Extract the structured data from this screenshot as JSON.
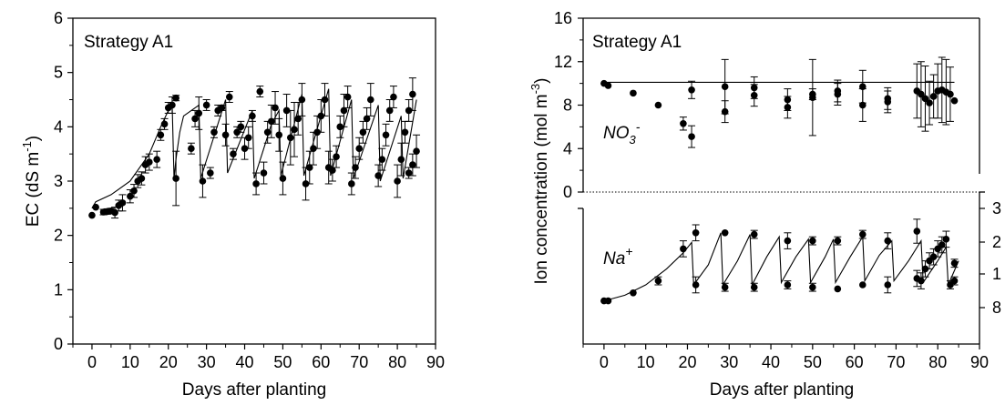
{
  "chart_data": [
    {
      "type": "scatter",
      "annotation": "Strategy A1",
      "xlabel": "Days after planting",
      "ylabel_main": "EC (dS m",
      "ylabel_sup": "-1",
      "ylabel_end": ")",
      "xlim": [
        -5,
        90
      ],
      "ylim": [
        0,
        6
      ],
      "xticks": [
        "0",
        "10",
        "20",
        "30",
        "40",
        "50",
        "60",
        "70",
        "80",
        "90"
      ],
      "yticks": [
        "0",
        "1",
        "2",
        "3",
        "4",
        "5",
        "6"
      ],
      "observed": [
        [
          0,
          2.37,
          0
        ],
        [
          1,
          2.52,
          0
        ],
        [
          3,
          2.43,
          0.05
        ],
        [
          4,
          2.44,
          0.05
        ],
        [
          5,
          2.45,
          0.05
        ],
        [
          6,
          2.42,
          0.1
        ],
        [
          7,
          2.55,
          0.1
        ],
        [
          8,
          2.6,
          0.15
        ],
        [
          10,
          2.72,
          0.12
        ],
        [
          11,
          2.82,
          0.12
        ],
        [
          12,
          3.0,
          0.12
        ],
        [
          13,
          3.05,
          0.12
        ],
        [
          14,
          3.3,
          0.15
        ],
        [
          15,
          3.35,
          0.15
        ],
        [
          17,
          3.4,
          0.15
        ],
        [
          18,
          3.85,
          0.1
        ],
        [
          19,
          4.05,
          0.1
        ],
        [
          20,
          4.35,
          0.1
        ],
        [
          21,
          4.4,
          0.15
        ],
        [
          22,
          4.53,
          0.05
        ],
        [
          22,
          3.05,
          0.5
        ],
        [
          26,
          3.6,
          0.1
        ],
        [
          27,
          4.15,
          0.15
        ],
        [
          28,
          4.25,
          0.3
        ],
        [
          29,
          3.0,
          0.3
        ],
        [
          30,
          4.4,
          0.1
        ],
        [
          31,
          3.15,
          0.1
        ],
        [
          32,
          3.9,
          0.1
        ],
        [
          33,
          4.3,
          0.1
        ],
        [
          34,
          4.35,
          0.05
        ],
        [
          35,
          3.85,
          0.2
        ],
        [
          36,
          4.55,
          0.1
        ],
        [
          37,
          3.5,
          0.1
        ],
        [
          38,
          3.9,
          0.1
        ],
        [
          39,
          4.0,
          0.1
        ],
        [
          40,
          3.6,
          0.2
        ],
        [
          41,
          3.8,
          0.2
        ],
        [
          42,
          4.2,
          0.1
        ],
        [
          43,
          2.95,
          0.2
        ],
        [
          44,
          4.65,
          0.1
        ],
        [
          45,
          3.15,
          0.2
        ],
        [
          46,
          3.9,
          0.2
        ],
        [
          47,
          4.1,
          0.3
        ],
        [
          48,
          4.35,
          0.3
        ],
        [
          49,
          3.85,
          0.3
        ],
        [
          50,
          3.05,
          0.3
        ],
        [
          51,
          4.3,
          0.3
        ],
        [
          52,
          3.8,
          0.5
        ],
        [
          53,
          3.95,
          0.5
        ],
        [
          54,
          4.15,
          0.3
        ],
        [
          55,
          4.5,
          0.3
        ],
        [
          56,
          2.95,
          0.3
        ],
        [
          57,
          3.25,
          0.3
        ],
        [
          58,
          3.6,
          0.3
        ],
        [
          59,
          3.9,
          0.3
        ],
        [
          60,
          4.2,
          0.3
        ],
        [
          61,
          4.5,
          0.3
        ],
        [
          62,
          3.25,
          0.3
        ],
        [
          63,
          3.2,
          0.2
        ],
        [
          64,
          3.45,
          0.2
        ],
        [
          65,
          4.0,
          0.2
        ],
        [
          66,
          4.3,
          0.3
        ],
        [
          67,
          4.55,
          0.2
        ],
        [
          68,
          2.95,
          0.2
        ],
        [
          69,
          3.25,
          0.2
        ],
        [
          70,
          3.6,
          0.2
        ],
        [
          71,
          3.9,
          0.2
        ],
        [
          72,
          4.15,
          0.2
        ],
        [
          73,
          4.5,
          0.3
        ],
        [
          75,
          3.1,
          0.2
        ],
        [
          76,
          3.4,
          0.2
        ],
        [
          77,
          3.85,
          0.2
        ],
        [
          78,
          4.3,
          0.2
        ],
        [
          79,
          4.55,
          0.2
        ],
        [
          80,
          3.0,
          0.3
        ],
        [
          81,
          3.4,
          0.3
        ],
        [
          82,
          3.9,
          0.2
        ],
        [
          83,
          4.3,
          0.2
        ],
        [
          84,
          4.6,
          0.3
        ],
        [
          83,
          3.15,
          0.1
        ],
        [
          84,
          3.3,
          0.2
        ],
        [
          85,
          3.55,
          0.3
        ]
      ],
      "simulated": [
        [
          0,
          2.5
        ],
        [
          1,
          2.62
        ],
        [
          5,
          2.75
        ],
        [
          10,
          3.0
        ],
        [
          15,
          3.5
        ],
        [
          18,
          4.0
        ],
        [
          21,
          4.45
        ],
        [
          21.5,
          3.05
        ],
        [
          22,
          3.4
        ],
        [
          23,
          3.9
        ],
        [
          24,
          4.2
        ],
        [
          28,
          4.4
        ],
        [
          28.5,
          3.05
        ],
        [
          35,
          4.5
        ],
        [
          35.5,
          3.15
        ],
        [
          42,
          4.3
        ],
        [
          42.5,
          3.05
        ],
        [
          45,
          3.6
        ],
        [
          47,
          4.05
        ],
        [
          49,
          4.3
        ],
        [
          49.5,
          3.1
        ],
        [
          55,
          4.6
        ],
        [
          55.5,
          3.1
        ],
        [
          62,
          4.7
        ],
        [
          62.5,
          3.1
        ],
        [
          68,
          4.5
        ],
        [
          68.5,
          3.05
        ],
        [
          75,
          4.4
        ],
        [
          75.5,
          3.0
        ],
        [
          81,
          4.2
        ],
        [
          81.5,
          3.05
        ],
        [
          85,
          4.5
        ]
      ]
    },
    {
      "type": "scatter",
      "annotation": "Strategy A1",
      "xlabel": "Days after planting",
      "ylabel_main": "Ion concentration (mol m",
      "ylabel_sup": "-3",
      "ylabel_end": ")",
      "xlim": [
        -5,
        90
      ],
      "top_ylim": [
        0,
        16
      ],
      "top_yticks": [
        "0",
        "4",
        "8",
        "12",
        "16"
      ],
      "xticks": [
        "0",
        "10",
        "20",
        "30",
        "40",
        "50",
        "60",
        "70",
        "80",
        "90"
      ],
      "right_ticks_visible": [
        "3",
        "2",
        "1",
        "8"
      ],
      "series": [
        {
          "name_main": "NO",
          "name_sub": "3",
          "name_sup": "-",
          "observed": [
            [
              0,
              10.0,
              0
            ],
            [
              1,
              9.8,
              0
            ],
            [
              7,
              9.1,
              0
            ],
            [
              13,
              8.0,
              0
            ],
            [
              19,
              6.3,
              0.6
            ],
            [
              21,
              5.1,
              1.0
            ],
            [
              21,
              9.4,
              0.8
            ],
            [
              29,
              9.7,
              2.5
            ],
            [
              29,
              7.4,
              1.0
            ],
            [
              36,
              9.6,
              1.0
            ],
            [
              36,
              8.9,
              1.0
            ],
            [
              44,
              8.5,
              1.0
            ],
            [
              44,
              7.8,
              1.0
            ],
            [
              50,
              9.0,
              0.5
            ],
            [
              50,
              8.7,
              3.5
            ],
            [
              56,
              9.3,
              1.0
            ],
            [
              56,
              9.0,
              1.0
            ],
            [
              62,
              9.7,
              1.5
            ],
            [
              62,
              8.0,
              1.5
            ],
            [
              68,
              8.3,
              1.0
            ],
            [
              68,
              8.6,
              1.0
            ],
            [
              75,
              9.3,
              2.5
            ],
            [
              76,
              9.0,
              3.0
            ],
            [
              77,
              8.6,
              3.0
            ],
            [
              78,
              8.2,
              2.0
            ],
            [
              79,
              8.8,
              2.0
            ],
            [
              80,
              9.3,
              2.5
            ],
            [
              81,
              9.4,
              3.0
            ],
            [
              82,
              9.2,
              3.0
            ],
            [
              83,
              9.0,
              2.5
            ],
            [
              84,
              8.4,
              0
            ]
          ],
          "simulated": [
            [
              0,
              10.1
            ],
            [
              84,
              10.1
            ]
          ]
        },
        {
          "name_main": "Na",
          "name_sup": "+",
          "observed": [
            [
              0,
              0.05,
              0
            ],
            [
              1,
              0.05,
              0
            ],
            [
              7,
              0.15,
              0
            ],
            [
              13,
              0.3,
              0.05
            ],
            [
              19,
              0.7,
              0.1
            ],
            [
              22,
              0.9,
              0.1
            ],
            [
              22,
              0.25,
              0.1
            ],
            [
              29,
              0.9,
              0
            ],
            [
              29,
              0.22,
              0.05
            ],
            [
              36,
              0.88,
              0.05
            ],
            [
              36,
              0.22,
              0.05
            ],
            [
              44,
              0.8,
              0.1
            ],
            [
              44,
              0.25,
              0.05
            ],
            [
              50,
              0.8,
              0.05
            ],
            [
              50,
              0.22,
              0.05
            ],
            [
              56,
              0.8,
              0.05
            ],
            [
              56,
              0.2,
              0
            ],
            [
              62,
              0.88,
              0.05
            ],
            [
              62,
              0.25,
              0
            ],
            [
              68,
              0.8,
              0.1
            ],
            [
              68,
              0.25,
              0.1
            ],
            [
              75,
              0.92,
              0.15
            ],
            [
              75,
              0.33,
              0.1
            ],
            [
              76,
              0.3,
              0.1
            ],
            [
              77,
              0.45,
              0.1
            ],
            [
              78,
              0.55,
              0.1
            ],
            [
              79,
              0.6,
              0.1
            ],
            [
              80,
              0.7,
              0.1
            ],
            [
              81,
              0.75,
              0.1
            ],
            [
              82,
              0.82,
              0.1
            ],
            [
              83,
              0.25,
              0.05
            ],
            [
              84,
              0.3,
              0.05
            ],
            [
              84,
              0.52,
              0.05
            ]
          ],
          "simulated": [
            [
              0,
              0.05
            ],
            [
              5,
              0.12
            ],
            [
              10,
              0.25
            ],
            [
              15,
              0.45
            ],
            [
              19,
              0.65
            ],
            [
              21,
              0.78
            ],
            [
              21.5,
              0.25
            ],
            [
              25,
              0.5
            ],
            [
              28,
              0.9
            ],
            [
              28.5,
              0.25
            ],
            [
              32,
              0.55
            ],
            [
              35,
              0.88
            ],
            [
              35.5,
              0.25
            ],
            [
              39,
              0.6
            ],
            [
              42,
              0.85
            ],
            [
              42.5,
              0.28
            ],
            [
              46,
              0.6
            ],
            [
              49,
              0.82
            ],
            [
              49.5,
              0.28
            ],
            [
              53,
              0.6
            ],
            [
              55,
              0.82
            ],
            [
              55.5,
              0.28
            ],
            [
              59,
              0.6
            ],
            [
              62,
              0.85
            ],
            [
              62.5,
              0.3
            ],
            [
              66,
              0.62
            ],
            [
              69,
              0.8
            ],
            [
              69.5,
              0.3
            ],
            [
              73,
              0.55
            ],
            [
              76,
              0.8
            ],
            [
              76.5,
              0.28
            ],
            [
              80,
              0.55
            ],
            [
              82,
              0.72
            ],
            [
              82.5,
              0.25
            ],
            [
              85,
              0.55
            ]
          ]
        }
      ]
    }
  ]
}
